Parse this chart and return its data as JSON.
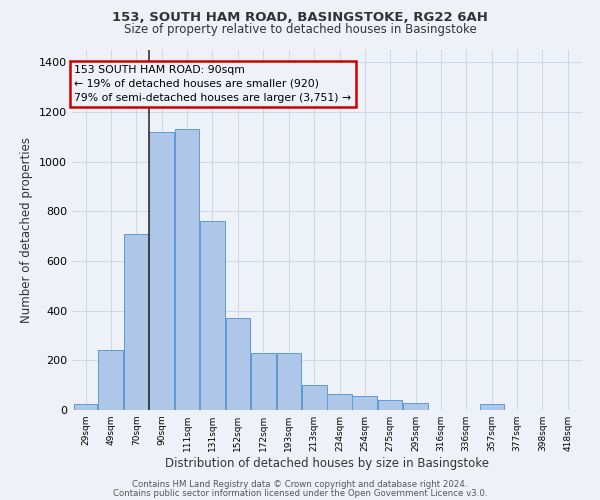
{
  "title1": "153, SOUTH HAM ROAD, BASINGSTOKE, RG22 6AH",
  "title2": "Size of property relative to detached houses in Basingstoke",
  "xlabel": "Distribution of detached houses by size in Basingstoke",
  "ylabel": "Number of detached properties",
  "footnote1": "Contains HM Land Registry data © Crown copyright and database right 2024.",
  "footnote2": "Contains public sector information licensed under the Open Government Licence v3.0.",
  "annotation_line1": "153 SOUTH HAM ROAD: 90sqm",
  "annotation_line2": "← 19% of detached houses are smaller (920)",
  "annotation_line3": "79% of semi-detached houses are larger (3,751) →",
  "property_size": 90,
  "bar_left_edges": [
    29,
    49,
    70,
    90,
    111,
    131,
    152,
    172,
    193,
    213,
    234,
    254,
    275,
    295,
    316,
    336,
    357,
    377,
    398,
    418
  ],
  "bar_widths": [
    20,
    21,
    20,
    21,
    20,
    21,
    20,
    21,
    20,
    21,
    21,
    21,
    20,
    21,
    20,
    21,
    20,
    21,
    20,
    21
  ],
  "bar_heights": [
    25,
    240,
    710,
    1120,
    1130,
    760,
    370,
    230,
    230,
    100,
    65,
    55,
    40,
    30,
    0,
    0,
    25,
    0,
    0,
    0
  ],
  "bar_color": "#aec6e8",
  "bar_edgecolor": "#5b9bd5",
  "highlight_line_color": "#333333",
  "grid_color": "#d0d8e8",
  "background_color": "#eef2f8",
  "ylim": [
    0,
    1450
  ],
  "yticks": [
    0,
    200,
    400,
    600,
    800,
    1000,
    1200,
    1400
  ],
  "annotation_box_color": "#cc0000",
  "text_color": "#333333",
  "footnote_color": "#555555"
}
